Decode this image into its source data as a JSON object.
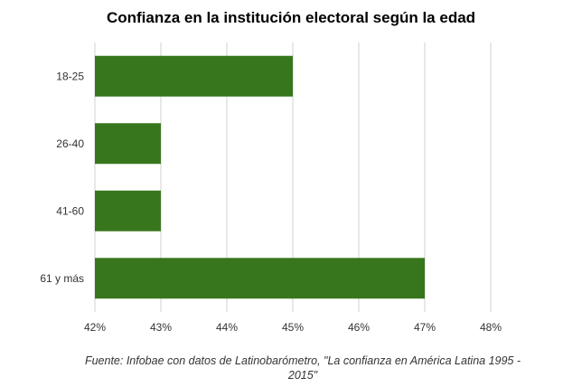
{
  "chart_data": {
    "type": "bar",
    "orientation": "horizontal",
    "title": "Confianza en la institución electoral según la edad",
    "categories": [
      "18-25",
      "26-40",
      "41-60",
      "61 y más"
    ],
    "values": [
      45,
      43,
      43,
      47
    ],
    "xlim": [
      42,
      48
    ],
    "x_ticks": [
      42,
      43,
      44,
      45,
      46,
      47,
      48
    ],
    "tick_suffix": "%",
    "xlabel": "",
    "ylabel": "",
    "grid": true,
    "bar_color": "#38761d",
    "grid_color": "#d0d0d0",
    "source": "Fuente: Infobae con datos de Latinobarómetro, \"La confianza en América Latina 1995 - 2015\""
  }
}
